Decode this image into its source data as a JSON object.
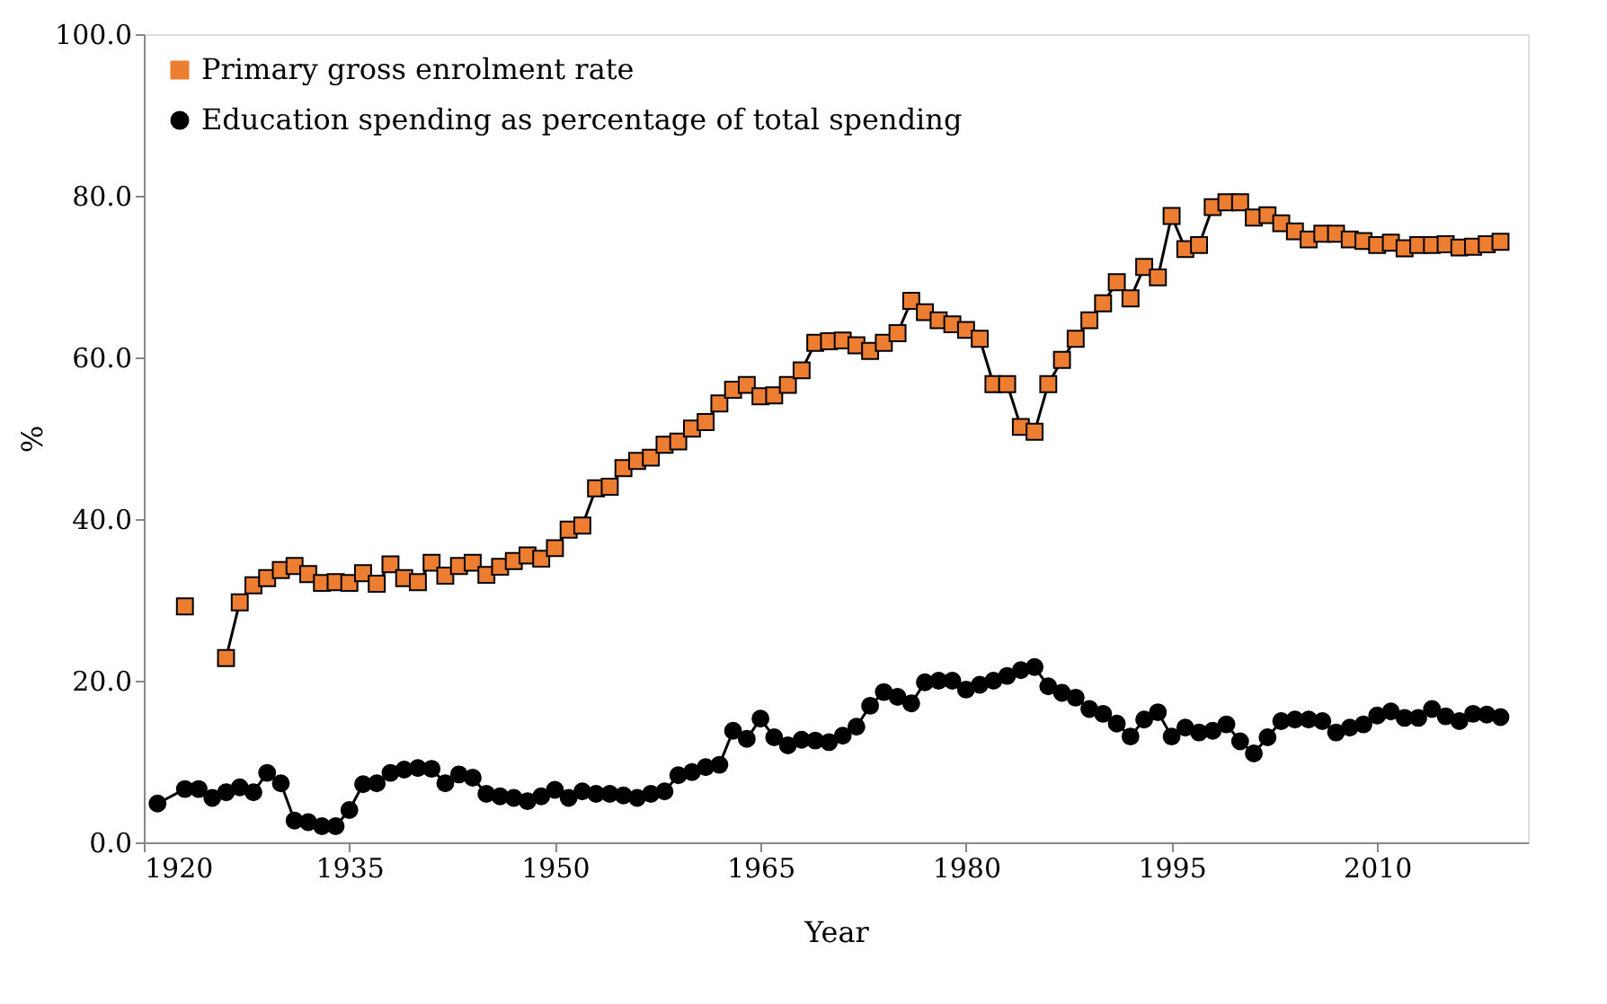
{
  "chart_data": {
    "type": "line",
    "xlabel": "Year",
    "ylabel": "%",
    "xlim": [
      1920,
      2021
    ],
    "xticks": [
      1920,
      1935,
      1950,
      1965,
      1980,
      1995,
      2010
    ],
    "ylim": [
      0,
      100
    ],
    "yticks": [
      {
        "value": 0,
        "label": "0.0"
      },
      {
        "value": 20,
        "label": "20.0"
      },
      {
        "value": 40,
        "label": "40.0"
      },
      {
        "value": 60,
        "label": "60.0"
      },
      {
        "value": 80,
        "label": "80.0"
      },
      {
        "value": 100,
        "label": "100.0"
      }
    ],
    "grid": false,
    "legend": "top left",
    "line_style": "solid",
    "series": [
      {
        "name": "Primary gross enrolment rate",
        "color": "#ed7d31",
        "marker": "square",
        "x": [
          1923,
          1924,
          1925,
          1926,
          1927,
          1928,
          1929,
          1930,
          1931,
          1932,
          1933,
          1934,
          1935,
          1936,
          1937,
          1938,
          1939,
          1940,
          1941,
          1942,
          1943,
          1944,
          1945,
          1946,
          1947,
          1948,
          1949,
          1950,
          1951,
          1952,
          1953,
          1954,
          1955,
          1956,
          1957,
          1958,
          1959,
          1960,
          1961,
          1962,
          1963,
          1964,
          1965,
          1966,
          1967,
          1968,
          1969,
          1970,
          1971,
          1972,
          1973,
          1974,
          1975,
          1976,
          1977,
          1978,
          1979,
          1980,
          1981,
          1982,
          1983,
          1984,
          1985,
          1986,
          1987,
          1988,
          1989,
          1990,
          1991,
          1992,
          1993,
          1994,
          1995,
          1996,
          1997,
          1998,
          1999,
          2000,
          2001,
          2002,
          2003,
          2004,
          2005,
          2006,
          2007,
          2008,
          2009,
          2010,
          2011,
          2012,
          2013,
          2014,
          2015,
          2016,
          2017,
          2018,
          2019
        ],
        "values": [
          29.2,
          null,
          null,
          22.8,
          29.7,
          31.8,
          32.7,
          33.7,
          34.2,
          33.2,
          32.1,
          32.2,
          32.1,
          33.3,
          32.0,
          34.4,
          32.7,
          32.2,
          34.6,
          33.0,
          34.2,
          34.6,
          33.1,
          34.1,
          34.8,
          35.5,
          35.1,
          36.4,
          38.7,
          39.2,
          43.8,
          44.0,
          46.3,
          47.2,
          47.6,
          49.2,
          49.6,
          51.2,
          52.0,
          54.3,
          56.0,
          56.6,
          55.2,
          55.3,
          56.6,
          58.4,
          61.8,
          62.0,
          62.1,
          61.5,
          60.8,
          61.8,
          63.0,
          67.0,
          65.6,
          64.6,
          64.1,
          63.4,
          62.3,
          56.7,
          56.7,
          51.4,
          50.8,
          56.7,
          59.7,
          62.3,
          64.6,
          66.7,
          69.3,
          67.3,
          71.2,
          69.9,
          77.5,
          73.4,
          73.9,
          78.6,
          79.2,
          79.2,
          77.3,
          77.6,
          76.6,
          75.6,
          74.6,
          75.3,
          75.3,
          74.6,
          74.4,
          73.9,
          74.2,
          73.5,
          73.9,
          73.9,
          74.0,
          73.6,
          73.7,
          74.0,
          74.3
        ]
      },
      {
        "name": "Education spending as percentage of total spending",
        "color": "#000000",
        "marker": "circle",
        "x": [
          1921,
          1923,
          1924,
          1925,
          1926,
          1927,
          1928,
          1929,
          1930,
          1931,
          1932,
          1933,
          1934,
          1935,
          1936,
          1937,
          1938,
          1939,
          1940,
          1941,
          1942,
          1943,
          1944,
          1945,
          1946,
          1947,
          1948,
          1949,
          1950,
          1951,
          1952,
          1953,
          1954,
          1955,
          1956,
          1957,
          1958,
          1959,
          1960,
          1961,
          1962,
          1963,
          1964,
          1965,
          1966,
          1967,
          1968,
          1969,
          1970,
          1971,
          1972,
          1973,
          1974,
          1975,
          1976,
          1977,
          1978,
          1979,
          1980,
          1981,
          1982,
          1983,
          1984,
          1985,
          1986,
          1987,
          1988,
          1989,
          1990,
          1991,
          1992,
          1993,
          1994,
          1995,
          1996,
          1997,
          1998,
          1999,
          2000,
          2001,
          2002,
          2003,
          2004,
          2005,
          2006,
          2007,
          2008,
          2009,
          2010,
          2011,
          2012,
          2013,
          2014,
          2015,
          2016,
          2017,
          2018,
          2019
        ],
        "values": [
          4.8,
          6.6,
          6.6,
          5.5,
          6.2,
          6.8,
          6.2,
          8.6,
          7.3,
          2.7,
          2.5,
          2.0,
          2.0,
          4.0,
          7.2,
          7.3,
          8.6,
          9.0,
          9.2,
          9.1,
          7.3,
          8.4,
          8.0,
          6.0,
          5.7,
          5.5,
          5.1,
          5.7,
          6.5,
          5.5,
          6.3,
          6.0,
          6.0,
          5.8,
          5.5,
          6.0,
          6.3,
          8.3,
          8.7,
          9.3,
          9.6,
          13.8,
          12.8,
          15.3,
          13.0,
          12.0,
          12.7,
          12.6,
          12.4,
          13.2,
          14.3,
          16.9,
          18.6,
          18.0,
          17.2,
          19.8,
          20.0,
          20.0,
          18.9,
          19.5,
          20.0,
          20.6,
          21.3,
          21.7,
          19.3,
          18.5,
          17.9,
          16.5,
          15.9,
          14.7,
          13.1,
          15.2,
          16.1,
          13.1,
          14.2,
          13.6,
          13.8,
          14.6,
          12.5,
          11.0,
          13.0,
          15.0,
          15.2,
          15.2,
          15.0,
          13.6,
          14.2,
          14.6,
          15.7,
          16.2,
          15.4,
          15.4,
          16.5,
          15.6,
          15.0,
          15.9,
          15.8,
          15.5
        ]
      }
    ]
  }
}
